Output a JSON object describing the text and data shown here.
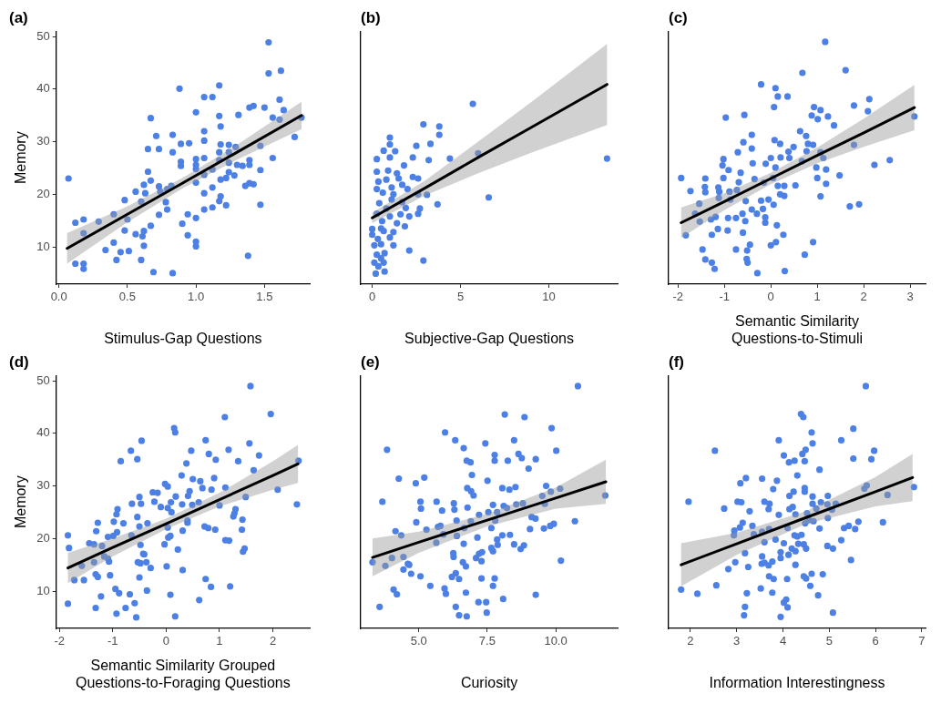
{
  "chart_data": [
    {
      "type": "scatter",
      "title": "(a)",
      "xlabel": "Stimulus-Gap Questions",
      "ylabel": "Memory",
      "xlim": [
        -0.02,
        1.83
      ],
      "xticks": [
        {
          "value": 0,
          "label": "0.0"
        },
        0.5,
        {
          "value": 1,
          "label": "1.0"
        },
        1.5
      ],
      "ylim": [
        2.9,
        51
      ],
      "yticks": [
        10,
        20,
        30,
        40,
        50
      ],
      "grid": false,
      "legend": false,
      "series": [
        {
          "type": "scatter",
          "color": "#4d80e4",
          "marker": "circle",
          "x": [
            0.07,
            0.12,
            0.18,
            0.18,
            0.12,
            0.18,
            0.18,
            0.29,
            0.34,
            0.4,
            0.4,
            0.42,
            0.45,
            0.48,
            0.48,
            0.51,
            0.5,
            0.56,
            0.56,
            0.6,
            0.62,
            0.62,
            0.61,
            0.62,
            0.6,
            0.63,
            0.65,
            0.65,
            0.67,
            0.67,
            0.67,
            0.69,
            0.71,
            0.73,
            0.73,
            0.73,
            0.74,
            0.78,
            0.79,
            0.79,
            0.82,
            0.83,
            0.83,
            0.83,
            0.88,
            0.89,
            0.89,
            0.89,
            0.9,
            0.95,
            0.94,
            0.94,
            1.0,
            1.0,
            1.0,
            1.0,
            1.0,
            1.0,
            1.0,
            1.0,
            1.06,
            1.06,
            1.06,
            1.06,
            1.06,
            1.06,
            1.06,
            1.12,
            1.12,
            1.12,
            1.12,
            1.17,
            1.17,
            1.18,
            1.18,
            1.17,
            1.17,
            1.18,
            1.18,
            1.17,
            1.22,
            1.22,
            1.24,
            1.24,
            1.24,
            1.24,
            1.28,
            1.29,
            1.3,
            1.31,
            1.34,
            1.36,
            1.38,
            1.39,
            1.39,
            1.39,
            1.39,
            1.42,
            1.42,
            1.47,
            1.47,
            1.47,
            1.5,
            1.53,
            1.53,
            1.56,
            1.56,
            1.61,
            1.61,
            1.62,
            1.64,
            1.72,
            1.77
          ],
          "values": [
            23,
            14.6,
            15.2,
            12.6,
            6.8,
            6.8,
            5.8,
            14.8,
            9.4,
            16.2,
            10.8,
            7.5,
            9.0,
            18.9,
            13.1,
            9.2,
            15.2,
            20.5,
            12.4,
            18.6,
            21.8,
            13,
            12,
            10.2,
            7.5,
            20.2,
            24.3,
            28.6,
            22.6,
            14,
            34.5,
            5.2,
            31.1,
            28.6,
            21.5,
            16.1,
            20.5,
            18.5,
            21,
            17.1,
            21.6,
            31.3,
            28,
            5,
            40.1,
            29.6,
            26.2,
            25.4,
            14.4,
            29.7,
            16.2,
            12.2,
            35.6,
            26.7,
            25.6,
            24.8,
            22.2,
            15.5,
            11,
            10.1,
            38.5,
            32,
            30.2,
            26.9,
            23.7,
            20.2,
            17.1,
            38.5,
            24.7,
            21.3,
            17.5,
            40.7,
            34.9,
            32.9,
            29.5,
            28,
            26.5,
            22.8,
            19.6,
            18.7,
            23.1,
            17.9,
            29.4,
            28,
            26,
            24.2,
            23.6,
            29,
            25.6,
            35.1,
            25.4,
            21.6,
            8.3,
            36.5,
            26.5,
            25.6,
            22.1,
            36.8,
            21.9,
            29.2,
            24.6,
            18,
            36.5,
            48.9,
            43,
            34.6,
            26.9,
            34.2,
            38,
            43.5,
            36,
            30.9,
            34.6
          ]
        },
        {
          "type": "line",
          "color": "#000000",
          "line_style": "solid",
          "x": [
            0.06,
            0.5,
            0.9,
            1.3,
            1.77
          ],
          "values": [
            9.7,
            16.2,
            22.1,
            28.0,
            35.0
          ],
          "lower": [
            6.8,
            14.7,
            21.1,
            26.6,
            32.4
          ],
          "upper": [
            12.6,
            17.7,
            23.1,
            29.4,
            37.6
          ]
        }
      ]
    },
    {
      "type": "scatter",
      "title": "(b)",
      "xlabel": "Subjective-Gap Questions",
      "xlim": [
        -0.65,
        13.9
      ],
      "xticks": [
        0,
        5,
        10
      ],
      "ylim": [
        2.9,
        51
      ],
      "tick_labels": "x",
      "grid": false,
      "legend": false,
      "series": [
        {
          "type": "scatter",
          "color": "#4d80e4",
          "marker": "circle",
          "x": [
            5.7,
            2.9,
            3.8,
            3.8,
            1.0,
            1.0,
            3.3,
            2.5,
            0.65,
            1.3,
            0.26,
            1.0,
            2.3,
            3.2,
            4.4,
            6.0,
            13.3,
            1.8,
            0.26,
            0.9,
            1.4,
            2.3,
            2.6,
            0.35,
            0.8,
            1.5,
            0.26,
            1.1,
            1.7,
            2.0,
            0.6,
            1.2,
            2.6,
            3.1,
            6.6,
            0.4,
            1.1,
            1.7,
            3.7,
            0.8,
            1.9,
            2.7,
            0.26,
            1.0,
            1.6,
            2.1,
            2.6,
            0.56,
            1.4,
            1.85,
            0,
            0.5,
            0,
            0.65,
            1.2,
            0.32,
            1.0,
            0.5,
            0.12,
            1.2,
            2.1,
            0.7,
            0.26,
            0.5,
            2.9,
            0.12,
            0.65,
            0.35,
            0.2,
            0.7
          ],
          "values": [
            37.2,
            33.3,
            32.9,
            31.3,
            30.8,
            29.5,
            29.6,
            29.2,
            28.3,
            28.2,
            26.7,
            27,
            27,
            26.5,
            26.8,
            27.8,
            26.8,
            25.5,
            24.3,
            24.5,
            24,
            23.3,
            23,
            22.4,
            22.8,
            23,
            21,
            21.3,
            21.8,
            21,
            20.3,
            20,
            20,
            19.9,
            19.4,
            18.3,
            19,
            18.5,
            18.1,
            17.3,
            17.4,
            17.3,
            16.3,
            15.8,
            16.2,
            15.8,
            16.3,
            14.9,
            14.5,
            13.9,
            13.4,
            13.5,
            12.3,
            13,
            12.8,
            11.5,
            11.8,
            10.5,
            10.3,
            10.3,
            9.3,
            8.8,
            8.5,
            7.8,
            7.4,
            7,
            7,
            6.3,
            4.9,
            5.3
          ]
        },
        {
          "type": "line",
          "color": "#000000",
          "line_style": "solid",
          "x": [
            0,
            3,
            6,
            9,
            13.3
          ],
          "values": [
            15.5,
            21.2,
            27.0,
            32.7,
            40.9
          ],
          "lower": [
            14.5,
            19.8,
            24.0,
            27.9,
            33.2
          ],
          "upper": [
            16.5,
            22.6,
            30.0,
            37.5,
            48.6
          ]
        }
      ]
    },
    {
      "type": "scatter",
      "title": "(c)",
      "xlabel": "Semantic Similarity\nQuestions-to-Stimuli",
      "xlim": [
        -2.2,
        3.33
      ],
      "xticks": [
        -2,
        -1,
        0,
        1,
        2,
        3
      ],
      "ylim": [
        2.9,
        51
      ],
      "tick_labels": "x",
      "grid": false,
      "legend": false,
      "series": [
        {
          "type": "scatter",
          "color": "#4d80e4",
          "marker": "circle",
          "x": [
            1.17,
            0.68,
            1.61,
            -0.21,
            0.1,
            0.15,
            0.36,
            0.07,
            0.93,
            1.07,
            1.79,
            2.12,
            2.09,
            -0.97,
            -0.57,
            0.88,
            1.01,
            1.23,
            1.36,
            3.09,
            0.63,
            0.76,
            -0.41,
            -0.59,
            0.08,
            0.2,
            0.8,
            0.91,
            1.79,
            -0.71,
            -0.41,
            0.49,
            0.38,
            0.77,
            1.07,
            -1.02,
            -0.39,
            0,
            -0.11,
            0.21,
            0.4,
            0.67,
            1.13,
            -1.04,
            -0.91,
            0.1,
            0.98,
            1.19,
            2.56,
            2.23,
            -1.93,
            -1.41,
            -1.02,
            -0.65,
            1.48,
            1.0,
            -0.35,
            -0.69,
            -0.15,
            0.05,
            -1.73,
            -1.42,
            -1.41,
            -1.13,
            -1.11,
            -0.89,
            -0.73,
            0.15,
            0.29,
            0.53,
            1.19,
            0.2,
            0.29,
            1.07,
            -1.12,
            -0.87,
            -0.54,
            -0.21,
            -0.05,
            -1.54,
            -0.41,
            -0.61,
            -0.17,
            0.06,
            -1.63,
            -1.19,
            -0.92,
            -0.75,
            -0.3,
            -0.12,
            1.7,
            1.9,
            -1.53,
            -1.29,
            -0.55,
            -0.12,
            0.13,
            -1.14,
            -0.93,
            -0.6,
            -1.83,
            -1.27,
            0.27,
            0.91,
            -0.45,
            0,
            0.11,
            -1.47,
            -0.75,
            -0.51,
            0.73,
            -1.41,
            -0.52,
            -0.5,
            -1.27,
            -1.21,
            -0.29,
            0.3
          ],
          "values": [
            49.0,
            43.1,
            43.6,
            40.9,
            40.2,
            38.6,
            38.6,
            36.6,
            36.6,
            36.0,
            36.9,
            38.1,
            35.8,
            34.6,
            35.1,
            35.0,
            34.3,
            34.8,
            33.1,
            34.8,
            32.0,
            31.1,
            31.3,
            29.9,
            30.3,
            29.6,
            29.6,
            29.4,
            29.4,
            28.0,
            28.7,
            29.0,
            28.1,
            28.2,
            28.0,
            26.7,
            25.9,
            26.9,
            25.8,
            27.0,
            26.9,
            26.3,
            26.9,
            25.5,
            24.6,
            25.1,
            25.1,
            24.7,
            26.5,
            25.6,
            23.1,
            23.0,
            23.1,
            24.1,
            23.6,
            23.1,
            22.9,
            22.3,
            22.2,
            23.1,
            20.6,
            21.4,
            20.4,
            21.3,
            20.5,
            20.5,
            20.8,
            21.6,
            21.6,
            21.7,
            22.0,
            20.0,
            19.7,
            19.6,
            19.3,
            19.0,
            18.7,
            18.8,
            19.0,
            18.2,
            17.1,
            16.3,
            17.2,
            18.0,
            16.3,
            15.7,
            15.5,
            15.5,
            16.3,
            15.6,
            17.7,
            18.1,
            14.8,
            15.2,
            14.9,
            14.6,
            14.1,
            13.4,
            13.1,
            12.7,
            12.2,
            12.3,
            12.3,
            10.9,
            10.4,
            10.3,
            10.9,
            9.5,
            9.5,
            9.3,
            8.5,
            7.6,
            7.7,
            7.0,
            7.0,
            5.8,
            5.0,
            5.4
          ]
        },
        {
          "type": "line",
          "color": "#000000",
          "line_style": "solid",
          "x": [
            -1.93,
            -1,
            0,
            1,
            2,
            3.09
          ],
          "values": [
            14.6,
            18.6,
            23.0,
            27.4,
            31.7,
            36.5
          ],
          "lower": [
            11.7,
            17.0,
            21.9,
            25.9,
            29.0,
            32.2
          ],
          "upper": [
            17.5,
            20.2,
            24.1,
            28.9,
            34.4,
            40.8
          ]
        }
      ]
    },
    {
      "type": "scatter",
      "title": "(d)",
      "xlabel": "Semantic Similarity Grouped\nQuestions-to-Foraging Questions",
      "ylabel": "Memory",
      "xlim": [
        -2.06,
        2.69
      ],
      "xticks": [
        -2,
        -1,
        0,
        1,
        2
      ],
      "ylim": [
        2.9,
        51
      ],
      "yticks": [
        10,
        20,
        30,
        40,
        50
      ],
      "grid": false,
      "legend": false,
      "series": [
        {
          "type": "scatter",
          "color": "#4d80e4",
          "marker": "circle",
          "x": [
            1.58,
            1.96,
            1.1,
            0.15,
            0.17,
            -0.46,
            0.74,
            -0.66,
            0.47,
            1.17,
            1.56,
            1.74,
            -0.85,
            -0.54,
            0.38,
            0.8,
            0.93,
            1.35,
            2.48,
            1.64,
            0.29,
            0.5,
            0.9,
            0.64,
            -0.02,
            0.03,
            1.11,
            0.68,
            0.85,
            2.09,
            0.44,
            -0.25,
            -0.16,
            0.41,
            0.18,
            -0.5,
            -0.64,
            -0.47,
            -0.22,
            0.09,
            0.61,
            0.3,
            0.49,
            1.0,
            1.49,
            2.45,
            -0.1,
            0.03,
            0.1,
            -0.91,
            -0.93,
            1.3,
            1.28,
            1.26,
            -0.54,
            0.4,
            0.4,
            1.43,
            -1.28,
            -0.98,
            -0.8,
            -0.35,
            -0.5,
            0.03,
            0.72,
            0.79,
            0.92,
            1.42,
            0.31,
            -1.31,
            -0.92,
            -1.09,
            -0.99,
            -0.65,
            -1.84,
            -1.44,
            -1.35,
            0.04,
            0.08,
            -0.03,
            -0.48,
            1.11,
            1.18,
            -1.2,
            -1.82,
            0.22,
            -0.43,
            -0.41,
            1.47,
            1.44,
            -1.16,
            -1.09,
            -0.53,
            -0.37,
            -0.48,
            -1.35,
            -1.07,
            -1.58,
            0.01,
            -0.29,
            0.31,
            -1.32,
            -1.28,
            -1.05,
            -0.5,
            -1.72,
            -1.54,
            0.74,
            0.84,
            1.2,
            -0.95,
            -0.36,
            -0.88,
            -1.22,
            -0.68,
            0.08,
            0.62,
            -1.84,
            -0.59,
            -1.32,
            -0.76,
            -0.93,
            -0.56,
            0.17
          ],
          "values": [
            49,
            43.7,
            43.1,
            41,
            40.2,
            38.6,
            38.7,
            36.7,
            36.7,
            36.9,
            38.1,
            35.8,
            34.7,
            35.1,
            34.3,
            36.1,
            35,
            34.7,
            34.8,
            33,
            32,
            31.3,
            31.5,
            30.9,
            30.4,
            29.9,
            29.7,
            29.6,
            29.3,
            29.3,
            29,
            28.8,
            28.7,
            28.1,
            28,
            27.9,
            26.6,
            26.6,
            27,
            26.9,
            26.9,
            26.5,
            26.4,
            26.3,
            27.9,
            26.5,
            26,
            25.8,
            25,
            25.6,
            24.6,
            25.6,
            24.8,
            24.2,
            24.1,
            23.4,
            23,
            23.6,
            23,
            23.2,
            22.9,
            22.9,
            22.3,
            22.1,
            22.3,
            22,
            21.7,
            21.7,
            21.5,
            21.4,
            21.2,
            20.3,
            20.5,
            20.6,
            20.6,
            19.1,
            18.9,
            20.2,
            20.5,
            18.9,
            18.8,
            19.7,
            19.6,
            18.6,
            18.2,
            17.9,
            17.1,
            17,
            18.1,
            17.5,
            16.6,
            16.2,
            15.5,
            15.5,
            15.3,
            15.5,
            15.6,
            14.8,
            14.7,
            14.4,
            14,
            13.2,
            12.7,
            13,
            12.6,
            12.1,
            12.1,
            12.3,
            10.8,
            10.9,
            10.4,
            10.1,
            9.6,
            9,
            9.4,
            9.3,
            8.3,
            7.6,
            7.7,
            6.8,
            6.8,
            5.7,
            5,
            5.2
          ]
        },
        {
          "type": "line",
          "color": "#000000",
          "line_style": "solid",
          "x": [
            -1.84,
            -1,
            0,
            1,
            2,
            2.47
          ],
          "values": [
            14.4,
            18.3,
            22.8,
            27.4,
            32.0,
            34.2
          ],
          "lower": [
            11.5,
            16.6,
            21.8,
            26.1,
            29.3,
            30.6
          ],
          "upper": [
            17.3,
            20.0,
            23.8,
            28.7,
            34.7,
            37.8
          ]
        }
      ]
    },
    {
      "type": "scatter",
      "title": "(e)",
      "xlabel": "Curiosity",
      "xlim": [
        2.88,
        12.26
      ],
      "xticks": [
        {
          "value": 5,
          "label": "5.0"
        },
        7.5,
        {
          "value": 10,
          "label": "10.0"
        }
      ],
      "ylim": [
        2.9,
        51
      ],
      "tick_labels": "x",
      "grid": false,
      "legend": false,
      "series": [
        {
          "type": "scatter",
          "color": "#4d80e4",
          "marker": "circle",
          "x": [
            10.81,
            8.14,
            8.86,
            5.96,
            9.85,
            6.33,
            7.43,
            8.48,
            6.64,
            3.84,
            10.02,
            7.77,
            8.64,
            6.75,
            6.89,
            7.77,
            8.25,
            8.76,
            9.27,
            9.01,
            6.94,
            4.27,
            4.89,
            5.2,
            7.51,
            6.77,
            6.91,
            7.0,
            8.05,
            8.31,
            8.53,
            9.65,
            10.16,
            9.82,
            9.51,
            11.81,
            3.67,
            5.06,
            5.08,
            5.65,
            5.85,
            6.28,
            6.3,
            6.78,
            7.71,
            8.1,
            8.56,
            8.8,
            9.6,
            7.54,
            7.2,
            7.86,
            8.22,
            9.12,
            9.26,
            4.91,
            6.38,
            6.9,
            7.79,
            5.7,
            5.79,
            5.28,
            4.15,
            4.36,
            5.9,
            6.39,
            6.66,
            7.65,
            9.06,
            9.57,
            9.8,
            9.93,
            10.7,
            5.64,
            6.64,
            7.14,
            8.05,
            8.33,
            7.86,
            7.88,
            8.48,
            7.65,
            7.71,
            8.72,
            8.84,
            6.26,
            6.27,
            7.2,
            7.31,
            7.09,
            7.29,
            3.31,
            3.78,
            4.02,
            4.44,
            4.6,
            4.65,
            6.61,
            6.72,
            10.19,
            4.44,
            4.72,
            5.06,
            6.35,
            6.21,
            6.47,
            7.29,
            7.77,
            5.42,
            5.94,
            5.99,
            4.08,
            4.2,
            6.72,
            7.71,
            9.27,
            8.08,
            7.18,
            7.46,
            3.57,
            6.35,
            6.47,
            6.75,
            7.48
          ],
          "values": [
            49.0,
            43.6,
            43.1,
            40.2,
            41.0,
            38.7,
            38.1,
            38.7,
            37.2,
            36.9,
            36.7,
            35.9,
            36.1,
            34.8,
            34.5,
            34.8,
            34.8,
            35.3,
            35.1,
            33.3,
            32.1,
            31.4,
            30.5,
            31.6,
            31.0,
            29.6,
            29.0,
            28.2,
            29.6,
            29.3,
            29.8,
            30.0,
            29.5,
            28.9,
            28.1,
            28.2,
            27.0,
            27.0,
            25.7,
            27.0,
            25.3,
            26.7,
            25.5,
            25.9,
            26.4,
            26.2,
            26.5,
            26.7,
            26.6,
            25.0,
            24.5,
            25.0,
            25.8,
            24.1,
            23.8,
            23.1,
            23.4,
            23.3,
            23.4,
            22.2,
            22.4,
            21.7,
            21.4,
            20.6,
            20.8,
            20.5,
            22.0,
            22.0,
            21.8,
            21.9,
            22.4,
            22.8,
            23.3,
            19.2,
            19.0,
            20.2,
            20.6,
            20.7,
            19.8,
            18.8,
            18.9,
            18.2,
            17.6,
            18.0,
            18.7,
            17.2,
            16.5,
            17.1,
            17.4,
            16.3,
            15.7,
            15.5,
            14.8,
            16.3,
            16.5,
            15.2,
            15.0,
            15.5,
            14.7,
            15.8,
            14.1,
            13.3,
            12.8,
            13.4,
            12.7,
            12.3,
            12.4,
            12.4,
            11.0,
            10.5,
            9.5,
            10.3,
            9.4,
            9.7,
            11.0,
            9.3,
            8.5,
            7.9,
            7.9,
            7.0,
            7.0,
            5.4,
            5.2,
            5.9
          ]
        },
        {
          "type": "line",
          "color": "#000000",
          "line_style": "solid",
          "x": [
            3.31,
            5,
            7.5,
            10,
            11.83
          ],
          "values": [
            16.4,
            19.3,
            23.5,
            27.7,
            30.8
          ],
          "lower": [
            12.8,
            17.3,
            22.3,
            25.7,
            26.6
          ],
          "upper": [
            20.0,
            21.3,
            24.7,
            29.7,
            35.0
          ]
        }
      ]
    },
    {
      "type": "scatter",
      "title": "(f)",
      "xlabel": "Information Interestingness",
      "xlim": [
        1.53,
        7.08
      ],
      "xticks": [
        2,
        3,
        4,
        5,
        6,
        7
      ],
      "ylim": [
        2.9,
        51
      ],
      "tick_labels": "x",
      "grid": false,
      "legend": false,
      "series": [
        {
          "type": "scatter",
          "color": "#4d80e4",
          "marker": "circle",
          "x": [
            5.79,
            4.39,
            4.44,
            4.62,
            5.52,
            3.91,
            4.64,
            5.26,
            2.53,
            4.49,
            4.42,
            5.97,
            4.02,
            4.13,
            4.25,
            4.47,
            5.52,
            5.91,
            4.79,
            4.31,
            3.2,
            3.08,
            3.55,
            3.87,
            3.79,
            4.47,
            4.47,
            4.23,
            4.14,
            4.64,
            4.97,
            5.76,
            5.81,
            6.26,
            6.83,
            1.96,
            3.02,
            3.1,
            3.6,
            3.71,
            3.69,
            2.73,
            3.28,
            4.14,
            4.21,
            4.64,
            4.82,
            4.96,
            5.14,
            5.06,
            3.91,
            4.27,
            4.52,
            4.72,
            4.56,
            4.66,
            4.48,
            4.97,
            3.13,
            3.34,
            3.07,
            2.95,
            2.94,
            3.37,
            3.55,
            3.7,
            4.1,
            4.79,
            5.32,
            5.42,
            5.56,
            5.63,
            6.16,
            4.25,
            4.4,
            4.31,
            3.6,
            3.84,
            4.02,
            4.33,
            4.45,
            4.5,
            4.96,
            5.08,
            5.26,
            4.19,
            4.27,
            4.12,
            3.95,
            3.18,
            3.95,
            3.55,
            3.6,
            3.54,
            3.69,
            3.77,
            2.97,
            2.82,
            3.25,
            4.27,
            5.47,
            3.7,
            3.8,
            4.09,
            4.45,
            4.5,
            4.62,
            4.86,
            2.56,
            1.8,
            2.15,
            3.52,
            4.59,
            3.22,
            3.77,
            4.76,
            4.07,
            4.02,
            4.1,
            3.18,
            3.16,
            3.95,
            5.08
          ],
          "values": [
            49.0,
            43.7,
            43.1,
            40.2,
            40.9,
            38.7,
            38.1,
            38.7,
            36.7,
            36.9,
            36.1,
            36.7,
            35.8,
            34.5,
            34.8,
            34.7,
            35.2,
            35.1,
            33.1,
            32.0,
            31.5,
            30.5,
            31.4,
            31.0,
            29.4,
            29.6,
            28.9,
            28.9,
            28.1,
            28.0,
            28.1,
            29.5,
            30.1,
            28.3,
            29.8,
            27.0,
            27.0,
            26.9,
            27.0,
            26.6,
            25.6,
            25.7,
            25.2,
            25.6,
            26.0,
            26.6,
            26.9,
            26.5,
            26.6,
            25.5,
            24.5,
            24.6,
            24.8,
            25.7,
            23.5,
            23.3,
            22.9,
            23.9,
            23.0,
            22.4,
            22.1,
            21.5,
            20.6,
            20.8,
            21.3,
            21.8,
            22.0,
            21.9,
            22.0,
            22.4,
            21.8,
            23.2,
            23.1,
            20.6,
            20.7,
            20.4,
            19.3,
            19.8,
            19.1,
            19.0,
            18.9,
            18.1,
            18.6,
            18.1,
            19.7,
            18.1,
            17.6,
            16.9,
            17.4,
            17.2,
            16.3,
            16.6,
            15.4,
            15.2,
            14.9,
            15.6,
            15.5,
            14.2,
            14.6,
            15.0,
            15.9,
            12.8,
            12.3,
            12.3,
            12.8,
            12.4,
            13.3,
            13.2,
            11.1,
            10.3,
            9.5,
            10.5,
            11.0,
            9.6,
            9.7,
            9.2,
            8.4,
            7.8,
            6.9,
            7.0,
            5.4,
            5.1,
            5.9
          ]
        },
        {
          "type": "line",
          "color": "#000000",
          "line_style": "solid",
          "x": [
            1.8,
            3,
            4.5,
            6,
            6.8
          ],
          "values": [
            15.0,
            19.0,
            24.0,
            28.9,
            31.6
          ],
          "lower": [
            10.9,
            16.9,
            22.8,
            26.1,
            27.1
          ],
          "upper": [
            19.1,
            21.1,
            25.2,
            31.7,
            36.1
          ]
        }
      ]
    }
  ]
}
